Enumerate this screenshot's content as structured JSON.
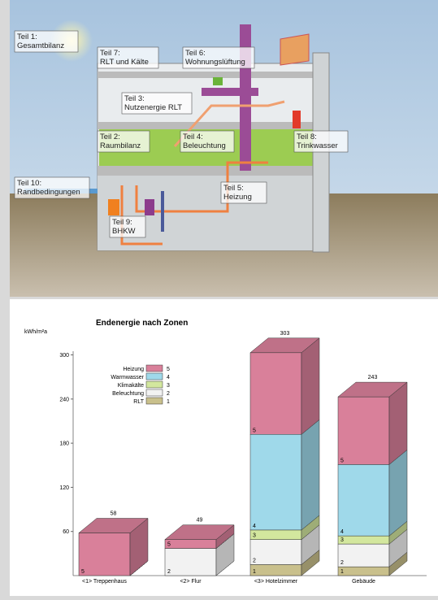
{
  "diagram": {
    "labels": [
      {
        "title": "Teil 1:",
        "text": "Gesamtbilanz"
      },
      {
        "title": "Teil 7:",
        "text": "RLT und Kälte"
      },
      {
        "title": "Teil 6:",
        "text": "Wohnungslüftung"
      },
      {
        "title": "Teil 3:",
        "text": "Nutzenergie RLT"
      },
      {
        "title": "Teil 2:",
        "text": "Raumbilanz"
      },
      {
        "title": "Teil 4:",
        "text": "Beleuchtung"
      },
      {
        "title": "Teil 8:",
        "text": "Trinkwasser"
      },
      {
        "title": "Teil 5:",
        "text": "Heizung"
      },
      {
        "title": "Teil 10:",
        "text": "Randbedingungen"
      },
      {
        "title": "Teil 9:",
        "text": "BHKW"
      }
    ]
  },
  "chart_data": {
    "type": "stacked-bar-3d",
    "title": "Endenergie nach Zonen",
    "y_label": "kWh/m²a",
    "categories": [
      "<1> Treppenhaus",
      "<2> Flur",
      "<3> Hotelzimmer",
      "Gebäude"
    ],
    "totals": [
      58,
      49,
      303,
      243
    ],
    "series": [
      {
        "name": "Heizung",
        "key": "5",
        "color": "#d9809a",
        "values": [
          58,
          12,
          111,
          92
        ]
      },
      {
        "name": "Warmwasser",
        "key": "4",
        "color": "#9fd9ea",
        "values": [
          0,
          0,
          130,
          97
        ]
      },
      {
        "name": "Klimakälte",
        "key": "3",
        "color": "#d3e79e",
        "values": [
          0,
          0,
          13,
          11
        ]
      },
      {
        "name": "Beleuchtung",
        "key": "2",
        "color": "#f2f2f2",
        "values": [
          0,
          37,
          34,
          31
        ]
      },
      {
        "name": "RLT",
        "key": "1",
        "color": "#c9c08c",
        "values": [
          0,
          0,
          15,
          12
        ]
      }
    ],
    "ylim": [
      0,
      305
    ],
    "yticks": [
      60,
      120,
      180,
      240,
      300
    ]
  }
}
